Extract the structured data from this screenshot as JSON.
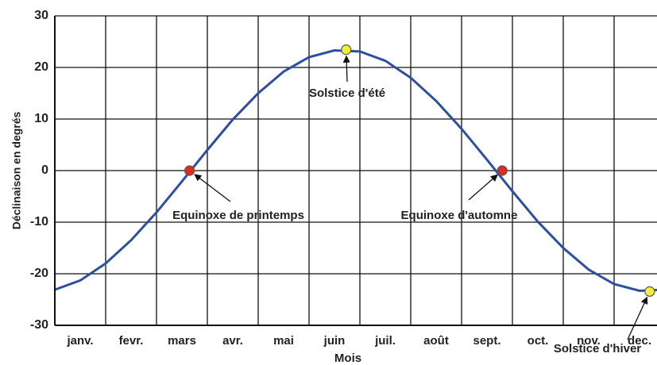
{
  "chart_data": {
    "type": "line",
    "ylabel": "Déclinaison en degrés",
    "xlabel": "Mois",
    "categories": [
      "janv.",
      "fevr.",
      "mars",
      "avr.",
      "mai",
      "juin",
      "juil.",
      "août",
      "sept.",
      "oct.",
      "nov.",
      "dec."
    ],
    "xlim": [
      0,
      12
    ],
    "ylim": [
      -30,
      30
    ],
    "yticks": [
      -30,
      -20,
      -10,
      0,
      10,
      20,
      30
    ],
    "grid": true,
    "series": [
      {
        "name": "Déclinaison",
        "color": "#2c4fa3",
        "x": [
          0,
          0.5,
          1,
          1.5,
          2,
          2.5,
          3,
          3.5,
          4,
          4.5,
          5,
          5.5,
          6,
          6.5,
          7,
          7.5,
          8,
          8.5,
          9,
          9.5,
          10,
          10.5,
          11,
          11.5,
          12
        ],
        "values": [
          -23.1,
          -21.3,
          -18.0,
          -13.5,
          -8.1,
          -2.1,
          4.0,
          9.9,
          15.0,
          19.2,
          22.0,
          23.3,
          23.1,
          21.3,
          18.0,
          13.5,
          8.1,
          2.1,
          -4.0,
          -9.9,
          -15.0,
          -19.2,
          -22.0,
          -23.3,
          -23.1
        ]
      }
    ],
    "points": [
      {
        "x": 2.65,
        "y": 0,
        "color": "#e02a20",
        "label": "Equinoxe de printemps"
      },
      {
        "x": 5.73,
        "y": 23.44,
        "color": "#f4ee3a",
        "label": "Solstice d'été"
      },
      {
        "x": 8.8,
        "y": 0,
        "color": "#e02a20",
        "label": "Equinoxe d'automne"
      },
      {
        "x": 11.7,
        "y": -23.44,
        "color": "#f4ee3a",
        "label": "Solstice d'hiver"
      }
    ]
  }
}
